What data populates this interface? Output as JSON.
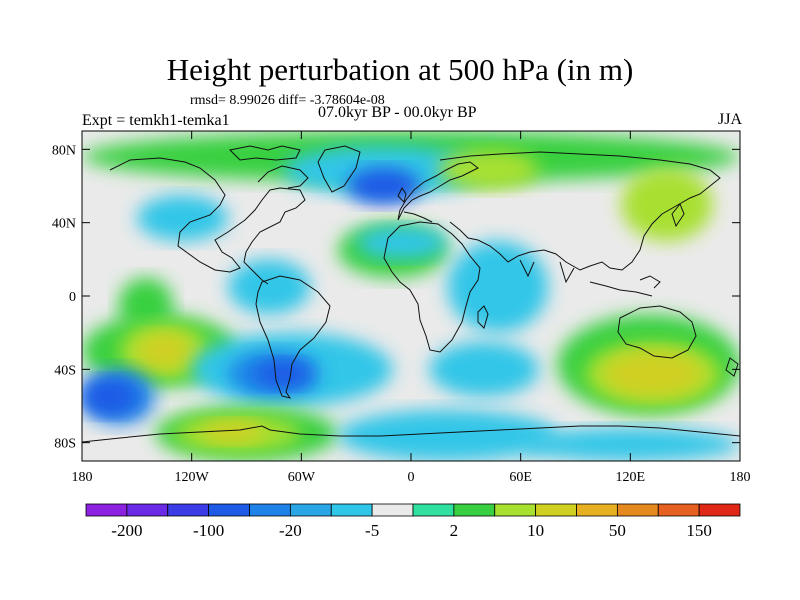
{
  "title": "Height perturbation at 500 hPa (in m)",
  "stats": "rmsd= 8.99026 diff= -3.78604e-08",
  "experiment": "Expt = temkh1-temka1",
  "period": "07.0kyr BP - 00.0kyr BP",
  "season": "JJA",
  "y_ticks": [
    {
      "label": "80N",
      "lat": 80
    },
    {
      "label": "40N",
      "lat": 40
    },
    {
      "label": "0",
      "lat": 0
    },
    {
      "label": "40S",
      "lat": -40
    },
    {
      "label": "80S",
      "lat": -80
    }
  ],
  "x_ticks": [
    {
      "label": "180",
      "lon": -180
    },
    {
      "label": "120W",
      "lon": -120
    },
    {
      "label": "60W",
      "lon": -60
    },
    {
      "label": "0",
      "lon": 0
    },
    {
      "label": "60E",
      "lon": 60
    },
    {
      "label": "120E",
      "lon": 120
    },
    {
      "label": "180",
      "lon": 180
    }
  ],
  "colorbar": {
    "colors": [
      "#8c22e0",
      "#6a2ae6",
      "#3c3ce6",
      "#1e5ae6",
      "#1e82e8",
      "#2aa6e6",
      "#30c6e8",
      "#eaeaea",
      "#30e0a0",
      "#38d040",
      "#a8e030",
      "#d0d020",
      "#e6b020",
      "#e68a20",
      "#e66020",
      "#e02818"
    ],
    "labels": [
      {
        "text": "-200",
        "boundary": 1
      },
      {
        "text": "-100",
        "boundary": 3
      },
      {
        "text": "-20",
        "boundary": 5
      },
      {
        "text": "-5",
        "boundary": 7
      },
      {
        "text": "2",
        "boundary": 9
      },
      {
        "text": "10",
        "boundary": 11
      },
      {
        "text": "50",
        "boundary": 13
      },
      {
        "text": "150",
        "boundary": 15
      }
    ]
  },
  "field_color": {
    "background": "#eaeaea",
    "green": "#38d040",
    "cyan": "#30c6e8",
    "light_blue": "#2aa6e6",
    "blue": "#1e82e8",
    "dark_blue": "#1e5ae6",
    "yellow_green": "#a8e030",
    "olive": "#d0d020",
    "orange": "#e6b020"
  },
  "features": [
    {
      "c": "green",
      "lon": [
        -180,
        180
      ],
      "lat": [
        62,
        90
      ]
    },
    {
      "c": "cyan",
      "lon": [
        -70,
        40
      ],
      "lat": [
        55,
        82
      ]
    },
    {
      "c": "dark_blue",
      "lon": [
        -35,
        5
      ],
      "lat": [
        50,
        70
      ]
    },
    {
      "c": "cyan",
      "lon": [
        -150,
        -100
      ],
      "lat": [
        30,
        55
      ]
    },
    {
      "c": "yellow_green",
      "lon": [
        15,
        70
      ],
      "lat": [
        58,
        80
      ]
    },
    {
      "c": "yellow_green",
      "lon": [
        115,
        165
      ],
      "lat": [
        30,
        70
      ]
    },
    {
      "c": "green",
      "lon": [
        -40,
        20
      ],
      "lat": [
        10,
        40
      ]
    },
    {
      "c": "cyan",
      "lon": [
        -30,
        20
      ],
      "lat": [
        20,
        38
      ]
    },
    {
      "c": "cyan",
      "lon": [
        20,
        75
      ],
      "lat": [
        -20,
        30
      ]
    },
    {
      "c": "cyan",
      "lon": [
        -100,
        -55
      ],
      "lat": [
        -10,
        20
      ]
    },
    {
      "c": "green",
      "lon": [
        -160,
        -130
      ],
      "lat": [
        -20,
        10
      ]
    },
    {
      "c": "green",
      "lon": [
        -180,
        -95
      ],
      "lat": [
        -50,
        -10
      ]
    },
    {
      "c": "yellow_green",
      "lon": [
        -160,
        -110
      ],
      "lat": [
        -45,
        -15
      ]
    },
    {
      "c": "olive",
      "lon": [
        -150,
        -120
      ],
      "lat": [
        -40,
        -20
      ]
    },
    {
      "c": "cyan",
      "lon": [
        -120,
        -10
      ],
      "lat": [
        -60,
        -20
      ]
    },
    {
      "c": "blue",
      "lon": [
        -100,
        -50
      ],
      "lat": [
        -55,
        -30
      ]
    },
    {
      "c": "dark_blue",
      "lon": [
        -85,
        -55
      ],
      "lat": [
        -50,
        -35
      ]
    },
    {
      "c": "blue",
      "lon": [
        -180,
        -140
      ],
      "lat": [
        -70,
        -40
      ]
    },
    {
      "c": "dark_blue",
      "lon": [
        -180,
        -150
      ],
      "lat": [
        -65,
        -45
      ]
    },
    {
      "c": "cyan",
      "lon": [
        10,
        70
      ],
      "lat": [
        -55,
        -25
      ]
    },
    {
      "c": "green",
      "lon": [
        80,
        180
      ],
      "lat": [
        -65,
        -10
      ]
    },
    {
      "c": "yellow_green",
      "lon": [
        95,
        170
      ],
      "lat": [
        -60,
        -25
      ]
    },
    {
      "c": "olive",
      "lon": [
        105,
        160
      ],
      "lat": [
        -55,
        -30
      ]
    },
    {
      "c": "green",
      "lon": [
        -140,
        -40
      ],
      "lat": [
        -90,
        -60
      ]
    },
    {
      "c": "yellow_green",
      "lon": [
        -130,
        -60
      ],
      "lat": [
        -85,
        -65
      ]
    },
    {
      "c": "olive",
      "lon": [
        -115,
        -80
      ],
      "lat": [
        -80,
        -68
      ]
    },
    {
      "c": "cyan",
      "lon": [
        -40,
        80
      ],
      "lat": [
        -90,
        -62
      ]
    },
    {
      "c": "cyan",
      "lon": [
        60,
        180
      ],
      "lat": [
        -90,
        -72
      ]
    }
  ]
}
